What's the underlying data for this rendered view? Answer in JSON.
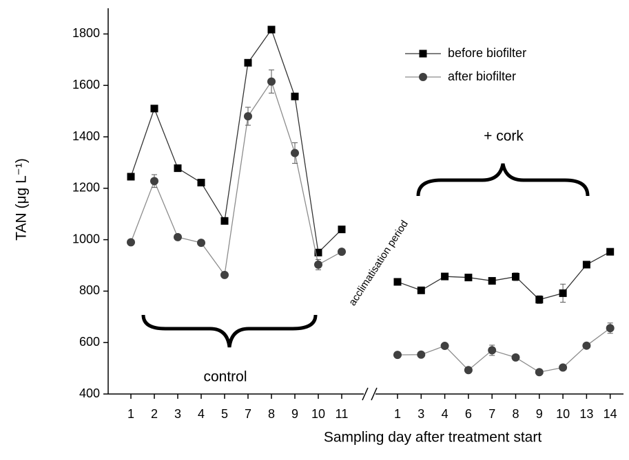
{
  "chart_data": {
    "type": "line",
    "xlabel": "Sampling day after treatment start",
    "ylabel": "TAN (μg L⁻¹)",
    "categories": [
      "1",
      "2",
      "3",
      "4",
      "5",
      "7",
      "8",
      "9",
      "10",
      "11",
      "1",
      "3",
      "4",
      "6",
      "7",
      "8",
      "9",
      "10",
      "13",
      "14"
    ],
    "ylim": [
      400,
      1900
    ],
    "yticks": [
      400,
      600,
      800,
      1000,
      1200,
      1400,
      1600,
      1800
    ],
    "series": [
      {
        "name": "before biofilter",
        "color": "#000000",
        "line_color": "#333333",
        "marker": "square",
        "values": [
          1245,
          1510,
          1278,
          1222,
          1073,
          1688,
          1817,
          1557,
          950,
          1040,
          836,
          803,
          857,
          853,
          840,
          856,
          767,
          792,
          903,
          953
        ],
        "errors": [
          null,
          null,
          null,
          null,
          null,
          null,
          null,
          null,
          null,
          null,
          null,
          null,
          null,
          null,
          null,
          15,
          15,
          35,
          null,
          null
        ]
      },
      {
        "name": "after biofilter",
        "color": "#404040",
        "line_color": "#8c8c8c",
        "marker": "circle",
        "values": [
          990,
          1228,
          1010,
          988,
          863,
          1480,
          1615,
          1337,
          903,
          953,
          552,
          553,
          587,
          493,
          570,
          542,
          485,
          503,
          588,
          656
        ],
        "errors": [
          null,
          25,
          null,
          null,
          null,
          35,
          45,
          40,
          20,
          null,
          null,
          null,
          null,
          null,
          20,
          null,
          null,
          null,
          null,
          20
        ]
      }
    ],
    "annotations": [
      "control",
      "+ cork",
      "acclimatisation period"
    ]
  }
}
